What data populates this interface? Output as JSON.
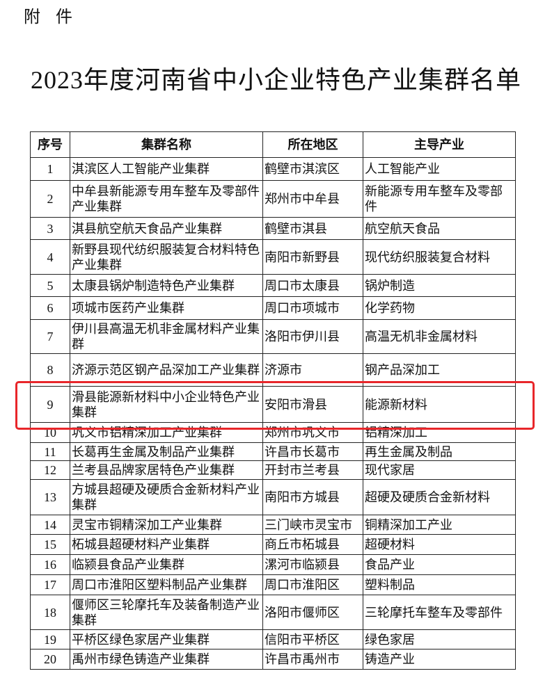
{
  "attachment_label": "附件",
  "title": "2023年度河南省中小企业特色产业集群名单",
  "table": {
    "headers": [
      "序号",
      "集群名称",
      "所在地区",
      "主导产业"
    ],
    "rows": [
      [
        "1",
        "淇滨区人工智能产业集群",
        "鹤壁市淇滨区",
        "人工智能产业"
      ],
      [
        "2",
        "中牟县新能源专用车整车及零部件产业集群",
        "郑州市中牟县",
        "新能源专用车整车及零部件"
      ],
      [
        "3",
        "淇县航空航天食品产业集群",
        "鹤壁市淇县",
        "航空航天食品"
      ],
      [
        "4",
        "新野县现代纺织服装复合材料特色产业集群",
        "南阳市新野县",
        "现代纺织服装复合材料"
      ],
      [
        "5",
        "太康县锅炉制造特色产业集群",
        "周口市太康县",
        "锅炉制造"
      ],
      [
        "6",
        "项城市医药产业集群",
        "周口市项城市",
        "化学药物"
      ],
      [
        "7",
        "伊川县高温无机非金属材料产业集群",
        "洛阳市伊川县",
        "高温无机非金属材料"
      ],
      [
        "8",
        "济源示范区钢产品深加工产业集群",
        "济源市",
        "钢产品深加工"
      ],
      [
        "9",
        "滑县能源新材料中小企业特色产业集群",
        "安阳市滑县",
        "能源新材料"
      ],
      [
        "10",
        "巩义市铝精深加工产业集群",
        "郑州市巩义市",
        "铝精深加工"
      ],
      [
        "11",
        "长葛再生金属及制品产业集群",
        "许昌市长葛市",
        "再生金属及制品"
      ],
      [
        "12",
        "兰考县品牌家居特色产业集群",
        "开封市兰考县",
        "现代家居"
      ],
      [
        "13",
        "方城县超硬及硬质合金新材料产业集群",
        "南阳市方城县",
        "超硬及硬质合金新材料"
      ],
      [
        "14",
        "灵宝市铜精深加工产业集群",
        "三门峡市灵宝市",
        "铜精深加工产业"
      ],
      [
        "15",
        "柘城县超硬材料产业集群",
        "商丘市柘城县",
        "超硬材料"
      ],
      [
        "16",
        "临颍县食品产业集群",
        "漯河市临颍县",
        "食品产业"
      ],
      [
        "17",
        "周口市淮阳区塑料制品产业集群",
        "周口市淮阳区",
        "塑料制品"
      ],
      [
        "18",
        "偃师区三轮摩托车及装备制造产业集群",
        "洛阳市偃师区",
        "三轮摩托车整车及零部件"
      ],
      [
        "19",
        "平桥区绿色家居产业集群",
        "信阳市平桥区",
        "绿色家居"
      ],
      [
        "20",
        "禹州市绿色铸造产业集群",
        "许昌市禹州市",
        "铸造产业"
      ]
    ],
    "highlighted_row": "9"
  },
  "colors": {
    "highlight_box": "#e8262a"
  }
}
